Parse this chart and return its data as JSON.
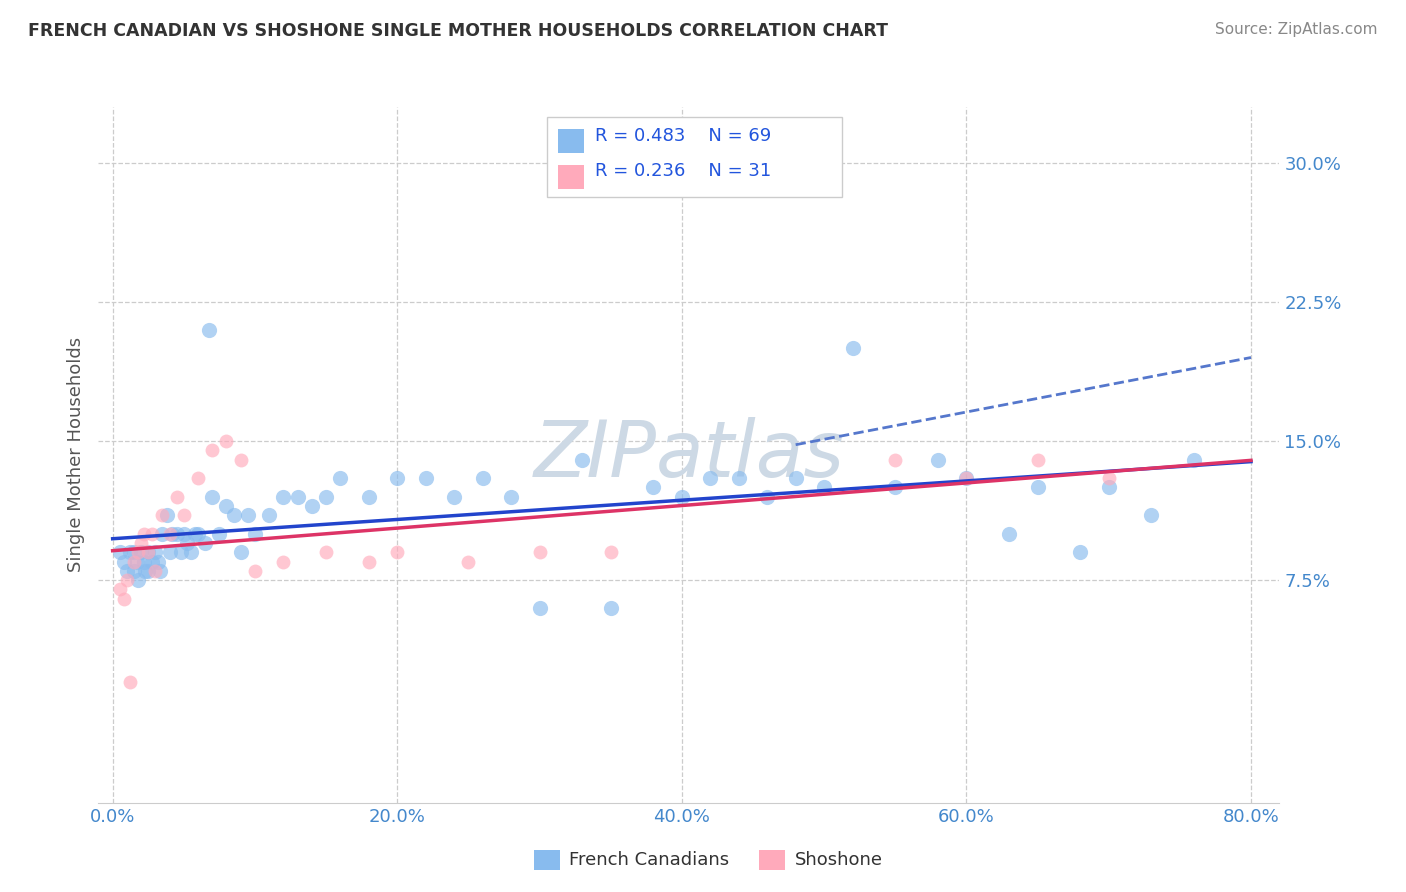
{
  "title": "FRENCH CANADIAN VS SHOSHONE SINGLE MOTHER HOUSEHOLDS CORRELATION CHART",
  "source": "Source: ZipAtlas.com",
  "ylabel": "Single Mother Households",
  "legend_labels": [
    "French Canadians",
    "Shoshone"
  ],
  "r_blue": 0.483,
  "n_blue": 69,
  "r_pink": 0.236,
  "n_pink": 31,
  "xlim": [
    -0.01,
    0.82
  ],
  "ylim": [
    -0.045,
    0.33
  ],
  "xticks": [
    0.0,
    0.2,
    0.4,
    0.6,
    0.8
  ],
  "xtick_labels": [
    "0.0%",
    "20.0%",
    "40.0%",
    "60.0%",
    "80.0%"
  ],
  "yticks": [
    0.075,
    0.15,
    0.225,
    0.3
  ],
  "ytick_labels": [
    "7.5%",
    "15.0%",
    "22.5%",
    "30.0%"
  ],
  "background_color": "#ffffff",
  "blue_dot_color": "#88bbee",
  "pink_dot_color": "#ffaabb",
  "trend_blue": "#2244cc",
  "trend_pink": "#dd3366",
  "trend_dashed_color": "#5577cc",
  "watermark_color": "#cdd9e5",
  "title_color": "#333333",
  "source_color": "#888888",
  "axis_label_color": "#555555",
  "tick_color": "#4488cc",
  "legend_r_color": "#2255dd",
  "grid_color": "#cccccc",
  "dot_size_blue": 120,
  "dot_size_pink": 100,
  "blue_x": [
    0.005,
    0.008,
    0.01,
    0.012,
    0.015,
    0.015,
    0.017,
    0.018,
    0.02,
    0.022,
    0.023,
    0.025,
    0.025,
    0.028,
    0.03,
    0.032,
    0.033,
    0.035,
    0.038,
    0.04,
    0.042,
    0.045,
    0.048,
    0.05,
    0.052,
    0.055,
    0.058,
    0.06,
    0.065,
    0.068,
    0.07,
    0.075,
    0.08,
    0.085,
    0.09,
    0.095,
    0.1,
    0.11,
    0.12,
    0.13,
    0.14,
    0.15,
    0.16,
    0.18,
    0.2,
    0.22,
    0.24,
    0.26,
    0.28,
    0.3,
    0.33,
    0.35,
    0.38,
    0.4,
    0.42,
    0.44,
    0.46,
    0.48,
    0.5,
    0.52,
    0.55,
    0.58,
    0.6,
    0.63,
    0.65,
    0.68,
    0.7,
    0.73,
    0.76
  ],
  "blue_y": [
    0.09,
    0.085,
    0.08,
    0.09,
    0.09,
    0.08,
    0.085,
    0.075,
    0.09,
    0.085,
    0.08,
    0.09,
    0.08,
    0.085,
    0.09,
    0.085,
    0.08,
    0.1,
    0.11,
    0.09,
    0.1,
    0.1,
    0.09,
    0.1,
    0.095,
    0.09,
    0.1,
    0.1,
    0.095,
    0.21,
    0.12,
    0.1,
    0.115,
    0.11,
    0.09,
    0.11,
    0.1,
    0.11,
    0.12,
    0.12,
    0.115,
    0.12,
    0.13,
    0.12,
    0.13,
    0.13,
    0.12,
    0.13,
    0.12,
    0.06,
    0.14,
    0.06,
    0.125,
    0.12,
    0.13,
    0.13,
    0.12,
    0.13,
    0.125,
    0.2,
    0.125,
    0.14,
    0.13,
    0.1,
    0.125,
    0.09,
    0.125,
    0.11,
    0.14
  ],
  "pink_x": [
    0.005,
    0.008,
    0.01,
    0.012,
    0.015,
    0.018,
    0.02,
    0.022,
    0.025,
    0.028,
    0.03,
    0.035,
    0.04,
    0.045,
    0.05,
    0.06,
    0.07,
    0.08,
    0.09,
    0.1,
    0.12,
    0.15,
    0.18,
    0.2,
    0.25,
    0.3,
    0.35,
    0.55,
    0.6,
    0.65,
    0.7
  ],
  "pink_y": [
    0.07,
    0.065,
    0.075,
    0.02,
    0.085,
    0.09,
    0.095,
    0.1,
    0.09,
    0.1,
    0.08,
    0.11,
    0.1,
    0.12,
    0.11,
    0.13,
    0.145,
    0.15,
    0.14,
    0.08,
    0.085,
    0.09,
    0.085,
    0.09,
    0.085,
    0.09,
    0.09,
    0.14,
    0.13,
    0.14,
    0.13
  ]
}
